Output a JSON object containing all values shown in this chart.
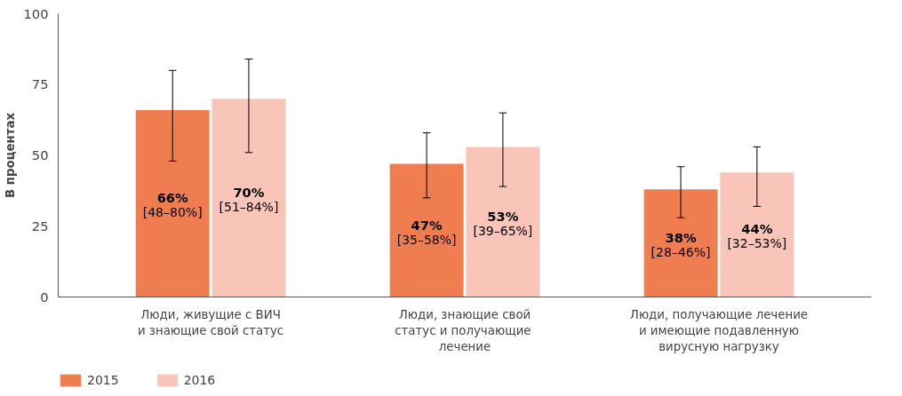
{
  "chart_data": {
    "type": "bar",
    "ylabel": "В процентах",
    "categories": [
      "Люди, живущие с ВИЧ\nи знающие свой статус",
      "Люди, знающие свой\nстатус и  получающие\nлечение",
      "Люди, получающие лечение\nи имеющие подавленную\nвирусную нагрузку"
    ],
    "series": [
      {
        "name": "2015",
        "color": "#f07d50",
        "values": [
          66,
          47,
          38
        ],
        "errors": [
          [
            48,
            80
          ],
          [
            35,
            58
          ],
          [
            28,
            46
          ]
        ],
        "value_labels": [
          "66%\n[48–80%]",
          "47%\n[35–58%]",
          "38%\n[28–46%]"
        ]
      },
      {
        "name": "2016",
        "color": "#f8c5b8",
        "values": [
          70,
          53,
          44
        ],
        "errors": [
          [
            51,
            84
          ],
          [
            39,
            65
          ],
          [
            32,
            53
          ]
        ],
        "value_labels": [
          "70%\n[51–84%]",
          "53%\n[39–65%]",
          "44%\n[32–53%]"
        ]
      }
    ],
    "ylim": [
      0,
      100
    ],
    "yticks": [
      0,
      25,
      50,
      75,
      100
    ],
    "grid": false,
    "legend": "bottom left"
  }
}
